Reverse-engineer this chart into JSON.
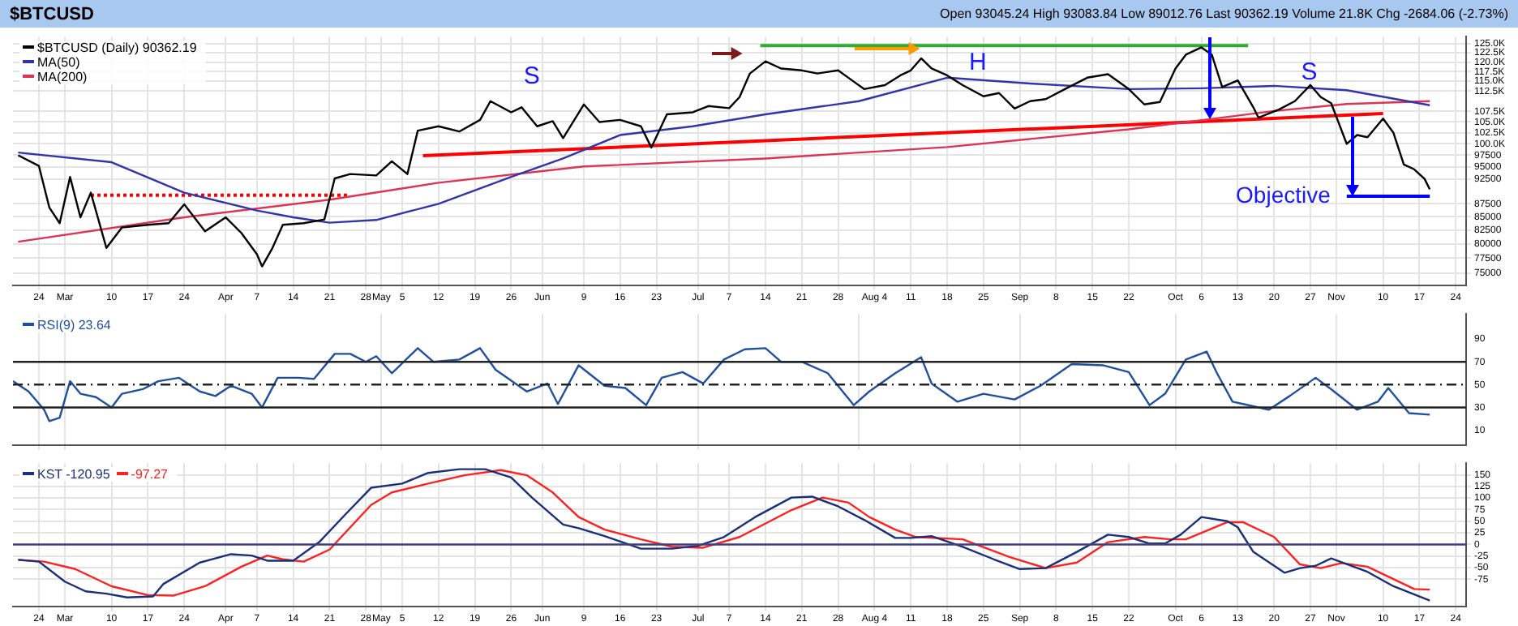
{
  "chart_data": [
    {
      "type": "line",
      "title": "$BTCUSD",
      "subtitle": "Open 93045.24 High 93083.84 Low 89012.76 Last 90362.19 Volume 21.8K Chg -2684.06 (-2.73%)",
      "log": "y",
      "grid": true,
      "legend": "top left",
      "marker": "none",
      "xlim": [
        "--02-19",
        "--11-26"
      ],
      "xticks": [
        {
          "value": "--02-24",
          "label": "24"
        },
        {
          "value": "--03-01",
          "label": "Mar"
        },
        {
          "value": "--03-10",
          "label": "10"
        },
        {
          "value": "--03-17",
          "label": "17"
        },
        {
          "value": "--03-24",
          "label": "24"
        },
        {
          "value": "--04-01",
          "label": "Apr"
        },
        {
          "value": "--04-07",
          "label": "7"
        },
        {
          "value": "--04-14",
          "label": "14"
        },
        {
          "value": "--04-21",
          "label": "21"
        },
        {
          "value": "--04-28",
          "label": "28"
        },
        {
          "value": "--05-01",
          "label": "May"
        },
        {
          "value": "--05-05",
          "label": "5"
        },
        {
          "value": "--05-12",
          "label": "12"
        },
        {
          "value": "--05-19",
          "label": "19"
        },
        {
          "value": "--05-26",
          "label": "26"
        },
        {
          "value": "--06-01",
          "label": "Jun"
        },
        {
          "value": "--06-09",
          "label": "9"
        },
        {
          "value": "--06-16",
          "label": "16"
        },
        {
          "value": "--06-23",
          "label": "23"
        },
        {
          "value": "--07-01",
          "label": "Jul"
        },
        {
          "value": "--07-07",
          "label": "7"
        },
        {
          "value": "--07-14",
          "label": "14"
        },
        {
          "value": "--07-21",
          "label": "21"
        },
        {
          "value": "--07-28",
          "label": "28"
        },
        {
          "value": "--08-04",
          "label": "Aug 4"
        },
        {
          "value": "--08-11",
          "label": "11"
        },
        {
          "value": "--08-18",
          "label": "18"
        },
        {
          "value": "--08-25",
          "label": "25"
        },
        {
          "value": "--09-01",
          "label": "Sep"
        },
        {
          "value": "--09-08",
          "label": "8"
        },
        {
          "value": "--09-15",
          "label": "15"
        },
        {
          "value": "--09-22",
          "label": "22"
        },
        {
          "value": "--10-01",
          "label": "Oct"
        },
        {
          "value": "--10-06",
          "label": "6"
        },
        {
          "value": "--10-13",
          "label": "13"
        },
        {
          "value": "--10-20",
          "label": "20"
        },
        {
          "value": "--10-27",
          "label": "27"
        },
        {
          "value": "--11-01",
          "label": "Nov"
        },
        {
          "value": "--11-10",
          "label": "10"
        },
        {
          "value": "--11-17",
          "label": "17"
        },
        {
          "value": "--11-24",
          "label": "24"
        }
      ],
      "ylim": [
        73000,
        127000
      ],
      "yticks": [
        {
          "value": 125000,
          "label": "125.0K"
        },
        {
          "value": 122500,
          "label": "122.5K"
        },
        {
          "value": 120000,
          "label": "120.0K"
        },
        {
          "value": 117500,
          "label": "117.5K"
        },
        {
          "value": 115000,
          "label": "115.0K"
        },
        {
          "value": 112500,
          "label": "112.5K"
        },
        {
          "value": 107500,
          "label": "107.5K"
        },
        {
          "value": 105000,
          "label": "105.0K"
        },
        {
          "value": 102500,
          "label": "102.5K"
        },
        {
          "value": 100000,
          "label": "100.0K"
        },
        97500,
        95000,
        92500,
        87500,
        85000,
        82500,
        80000,
        77500,
        75000
      ],
      "series": [
        {
          "name": "$BTCUSD (Daily) 90362.19",
          "color": "#000000",
          "x": [
            "--02-20",
            "--02-24",
            "--02-26",
            "--02-28",
            "--03-02",
            "--03-04",
            "--03-06",
            "--03-09",
            "--03-12",
            "--03-17",
            "--03-21",
            "--03-24",
            "--03-28",
            "--04-01",
            "--04-04",
            "--04-07",
            "--04-08",
            "--04-10",
            "--04-12",
            "--04-16",
            "--04-20",
            "--04-22",
            "--04-25",
            "--04-30",
            "--05-03",
            "--05-06",
            "--05-08",
            "--05-12",
            "--05-16",
            "--05-20",
            "--05-22",
            "--05-26",
            "--05-28",
            "--05-31",
            "--06-03",
            "--06-05",
            "--06-09",
            "--06-12",
            "--06-16",
            "--06-20",
            "--06-22",
            "--06-25",
            "--06-30",
            "--07-03",
            "--07-07",
            "--07-09",
            "--07-11",
            "--07-14",
            "--07-17",
            "--07-21",
            "--07-24",
            "--07-28",
            "--07-31",
            "--08-02",
            "--08-06",
            "--08-09",
            "--08-11",
            "--08-13",
            "--08-15",
            "--08-18",
            "--08-21",
            "--08-25",
            "--08-28",
            "--08-31",
            "--09-03",
            "--09-06",
            "--09-10",
            "--09-14",
            "--09-18",
            "--09-22",
            "--09-25",
            "--09-28",
            "--10-01",
            "--10-03",
            "--10-06",
            "--10-08",
            "--10-10",
            "--10-13",
            "--10-16",
            "--10-17",
            "--10-21",
            "--10-24",
            "--10-27",
            "--10-29",
            "--10-31",
            "--11-03",
            "--11-05",
            "--11-07",
            "--11-10",
            "--11-12",
            "--11-14",
            "--11-16",
            "--11-18",
            "--11-19"
          ],
          "values": [
            97500,
            95200,
            86800,
            83800,
            92900,
            84900,
            89700,
            79300,
            83000,
            83500,
            83800,
            87400,
            82300,
            84900,
            82000,
            78200,
            76100,
            79300,
            83500,
            83800,
            84500,
            92600,
            93500,
            93200,
            96200,
            93500,
            103000,
            104000,
            102800,
            105500,
            110000,
            107300,
            108500,
            104000,
            105200,
            101300,
            109200,
            105000,
            105500,
            104000,
            99200,
            106800,
            107300,
            108800,
            108300,
            111000,
            117000,
            120200,
            118300,
            117800,
            117000,
            117800,
            114900,
            113000,
            114000,
            116500,
            117800,
            121000,
            118300,
            116500,
            114000,
            111200,
            112000,
            108200,
            110000,
            110500,
            113200,
            115900,
            116800,
            113000,
            109200,
            109800,
            118300,
            122000,
            124000,
            122000,
            113500,
            115200,
            108500,
            106000,
            108000,
            110000,
            114000,
            111000,
            109500,
            100000,
            102000,
            101500,
            105800,
            102500,
            95500,
            94500,
            92500,
            90362.19
          ]
        },
        {
          "name": "MA(50)",
          "color": "#3333aa",
          "x": [
            "--02-20",
            "--03-10",
            "--03-24",
            "--04-07",
            "--04-14",
            "--04-21",
            "--04-30",
            "--05-12",
            "--05-26",
            "--06-05",
            "--06-16",
            "--06-30",
            "--07-14",
            "--08-01",
            "--08-18",
            "--09-03",
            "--09-22",
            "--10-06",
            "--10-20",
            "--11-03",
            "--11-19"
          ],
          "values": [
            98100,
            96000,
            89700,
            86200,
            84900,
            83900,
            84400,
            87500,
            92900,
            96800,
            102000,
            104000,
            106800,
            110000,
            115900,
            114400,
            113000,
            113200,
            113800,
            112700,
            109000
          ]
        },
        {
          "name": "MA(200)",
          "color": "#dd3355",
          "x": [
            "--02-20",
            "--03-24",
            "--04-21",
            "--05-12",
            "--06-09",
            "--07-14",
            "--08-18",
            "--09-22",
            "--10-20",
            "--11-03",
            "--11-19"
          ],
          "values": [
            80400,
            84900,
            88300,
            91700,
            95100,
            96800,
            99300,
            103300,
            107600,
            109300,
            110000
          ]
        },
        {
          "color": "#ff0000",
          "x": [
            "--05-09",
            "--11-10"
          ],
          "values": [
            97400,
            107000
          ]
        },
        {
          "color": "#ff0000",
          "line_style": "dotted",
          "x": [
            "--03-06",
            "--04-25"
          ],
          "values": [
            89200,
            89200
          ]
        },
        {
          "color": "#33aa33",
          "x": [
            "--07-13",
            "--10-15"
          ],
          "values": [
            124500,
            124500
          ]
        },
        {
          "color": "#0000ff",
          "x": [
            "--11-03",
            "--11-19"
          ],
          "values": [
            89000,
            89000
          ]
        }
      ],
      "annotations": [
        "S",
        "H",
        "S",
        {
          "text": "Objective",
          "x": "--11-03",
          "y": 89000
        }
      ]
    },
    {
      "type": "line",
      "grid": "x",
      "legend": "top left",
      "marker": "none",
      "tick_labels": "y",
      "xlim": [
        "--02-19",
        "--11-26"
      ],
      "xticks": [
        {
          "value": "--02-24",
          "label": null
        },
        {
          "value": "--03-01",
          "label": null
        },
        {
          "value": "--04-01",
          "label": null
        },
        {
          "value": "--05-01",
          "label": null
        },
        {
          "value": "--06-01",
          "label": null
        },
        {
          "value": "--07-01",
          "label": null
        },
        {
          "value": "--08-01",
          "label": null
        },
        {
          "value": "--09-01",
          "label": null
        },
        {
          "value": "--10-01",
          "label": null
        },
        {
          "value": "--11-01",
          "label": null
        }
      ],
      "ylim": [
        -3,
        112
      ],
      "yticks": [
        10,
        30,
        50,
        70,
        90
      ],
      "ref_lines": [
        {
          "axis": "y",
          "value": 70,
          "color": "#222222"
        },
        {
          "axis": "y",
          "value": 50,
          "color": "#222222",
          "line_style": "dashed"
        },
        {
          "axis": "y",
          "value": 30,
          "color": "#222222"
        }
      ],
      "series": [
        {
          "name": "RSI(9) 23.64",
          "color": "#1f4f9f",
          "x": [
            "--02-19",
            "--02-22",
            "--02-25",
            "--02-26",
            "--02-28",
            "--03-02",
            "--03-04",
            "--03-07",
            "--03-10",
            "--03-12",
            "--03-16",
            "--03-19",
            "--03-23",
            "--03-27",
            "--03-30",
            "--04-02",
            "--04-06",
            "--04-08",
            "--04-11",
            "--04-15",
            "--04-18",
            "--04-22",
            "--04-25",
            "--04-28",
            "--04-30",
            "--05-03",
            "--05-08",
            "--05-11",
            "--05-16",
            "--05-20",
            "--05-23",
            "--05-29",
            "--06-02",
            "--06-04",
            "--06-08",
            "--06-13",
            "--06-17",
            "--06-21",
            "--06-24",
            "--06-28",
            "--07-02",
            "--07-06",
            "--07-10",
            "--07-14",
            "--07-17",
            "--07-21",
            "--07-26",
            "--07-31",
            "--08-03",
            "--08-08",
            "--08-13",
            "--08-15",
            "--08-20",
            "--08-25",
            "--08-31",
            "--09-05",
            "--09-11",
            "--09-17",
            "--09-22",
            "--09-26",
            "--09-29",
            "--10-03",
            "--10-07",
            "--10-09",
            "--10-12",
            "--10-19",
            "--10-23",
            "--10-28",
            "--10-31",
            "--11-05",
            "--11-09",
            "--11-11",
            "--11-15",
            "--11-19"
          ],
          "values": [
            53,
            44,
            28,
            18,
            21,
            53,
            42,
            39,
            30,
            42,
            46,
            53,
            56,
            44,
            40,
            49,
            42,
            30,
            56,
            56,
            55,
            77,
            77,
            70,
            75,
            60,
            82,
            70,
            72,
            82,
            63,
            44,
            51,
            33,
            67,
            49,
            47,
            32,
            56,
            61,
            51,
            72,
            81,
            82,
            70,
            70,
            60,
            32,
            44,
            60,
            74,
            51,
            35,
            42,
            37,
            49,
            68,
            67,
            61,
            32,
            42,
            72,
            79,
            60,
            35,
            28,
            40,
            56,
            46,
            28,
            35,
            47,
            25,
            23.64
          ]
        }
      ]
    },
    {
      "type": "line",
      "grid": true,
      "legend": "top left",
      "marker": "none",
      "xlim": [
        "--02-19",
        "--11-26"
      ],
      "xticks": [
        {
          "value": "--02-24",
          "label": "24"
        },
        {
          "value": "--03-01",
          "label": "Mar"
        },
        {
          "value": "--03-10",
          "label": "10"
        },
        {
          "value": "--03-17",
          "label": "17"
        },
        {
          "value": "--03-24",
          "label": "24"
        },
        {
          "value": "--04-01",
          "label": "Apr"
        },
        {
          "value": "--04-07",
          "label": "7"
        },
        {
          "value": "--04-14",
          "label": "14"
        },
        {
          "value": "--04-21",
          "label": "21"
        },
        {
          "value": "--04-28",
          "label": "28"
        },
        {
          "value": "--05-01",
          "label": "May"
        },
        {
          "value": "--05-05",
          "label": "5"
        },
        {
          "value": "--05-12",
          "label": "12"
        },
        {
          "value": "--05-19",
          "label": "19"
        },
        {
          "value": "--05-26",
          "label": "26"
        },
        {
          "value": "--06-01",
          "label": "Jun"
        },
        {
          "value": "--06-09",
          "label": "9"
        },
        {
          "value": "--06-16",
          "label": "16"
        },
        {
          "value": "--06-23",
          "label": "23"
        },
        {
          "value": "--07-01",
          "label": "Jul"
        },
        {
          "value": "--07-07",
          "label": "7"
        },
        {
          "value": "--07-14",
          "label": "14"
        },
        {
          "value": "--07-21",
          "label": "21"
        },
        {
          "value": "--07-28",
          "label": "28"
        },
        {
          "value": "--08-04",
          "label": "Aug 4"
        },
        {
          "value": "--08-11",
          "label": "11"
        },
        {
          "value": "--08-18",
          "label": "18"
        },
        {
          "value": "--08-25",
          "label": "25"
        },
        {
          "value": "--09-01",
          "label": "Sep"
        },
        {
          "value": "--09-08",
          "label": "8"
        },
        {
          "value": "--09-15",
          "label": "15"
        },
        {
          "value": "--09-22",
          "label": "22"
        },
        {
          "value": "--10-01",
          "label": "Oct"
        },
        {
          "value": "--10-06",
          "label": "6"
        },
        {
          "value": "--10-13",
          "label": "13"
        },
        {
          "value": "--10-20",
          "label": "20"
        },
        {
          "value": "--10-27",
          "label": "27"
        },
        {
          "value": "--11-01",
          "label": "Nov"
        },
        {
          "value": "--11-10",
          "label": "10"
        },
        {
          "value": "--11-17",
          "label": "17"
        },
        {
          "value": "--11-24",
          "label": "24"
        }
      ],
      "ylim": [
        -133,
        175
      ],
      "yticks": [
        150,
        125,
        100,
        75,
        50,
        25,
        0,
        -25,
        -50,
        -75
      ],
      "ref_lines": [
        {
          "axis": "y",
          "value": 0,
          "color": "#404080"
        }
      ],
      "series": [
        {
          "name": "KST -120.95",
          "color": "#1a2f7a",
          "x": [
            "--02-20",
            "--02-24",
            "--03-01",
            "--03-05",
            "--03-09",
            "--03-13",
            "--03-18",
            "--03-20",
            "--03-27",
            "--04-02",
            "--04-06",
            "--04-09",
            "--04-14",
            "--04-19",
            "--04-24",
            "--04-29",
            "--05-05",
            "--05-10",
            "--05-16",
            "--05-21",
            "--05-26",
            "--05-30",
            "--06-05",
            "--06-08",
            "--06-13",
            "--06-20",
            "--06-26",
            "--07-01",
            "--07-06",
            "--07-12",
            "--07-19",
            "--07-23",
            "--07-28",
            "--08-02",
            "--08-08",
            "--08-11",
            "--08-15",
            "--08-21",
            "--08-27",
            "--09-01",
            "--09-06",
            "--09-12",
            "--09-18",
            "--09-22",
            "--09-26",
            "--09-29",
            "--10-02",
            "--10-06",
            "--10-11",
            "--10-13",
            "--10-16",
            "--10-22",
            "--10-25",
            "--10-28",
            "--10-31",
            "--11-07",
            "--11-12",
            "--11-19"
          ],
          "values": [
            -33,
            -37,
            -80,
            -101,
            -106,
            -114,
            -112,
            -85,
            -39,
            -21,
            -24,
            -35,
            -35,
            5,
            64,
            122,
            131,
            154,
            162,
            162,
            144,
            101,
            43,
            35,
            18,
            -9,
            -9,
            -3,
            16,
            59,
            101,
            103,
            82,
            53,
            14,
            14,
            18,
            -5,
            -32,
            -53,
            -51,
            -16,
            21,
            16,
            2,
            2,
            21,
            59,
            50,
            37,
            -16,
            -61,
            -51,
            -46,
            -30,
            -59,
            -90,
            -120.95
          ]
        },
        {
          "name": "-97.27",
          "color": "#ff2020",
          "x": [
            "--02-20",
            "--02-25",
            "--03-03",
            "--03-10",
            "--03-17",
            "--03-22",
            "--03-28",
            "--04-04",
            "--04-09",
            "--04-12",
            "--04-16",
            "--04-21",
            "--04-29",
            "--05-03",
            "--05-10",
            "--05-17",
            "--05-24",
            "--05-29",
            "--06-03",
            "--06-08",
            "--06-13",
            "--06-20",
            "--06-26",
            "--07-02",
            "--07-09",
            "--07-19",
            "--07-25",
            "--07-30",
            "--08-03",
            "--08-08",
            "--08-12",
            "--08-21",
            "--08-30",
            "--09-06",
            "--09-12",
            "--09-18",
            "--09-25",
            "--09-30",
            "--10-03",
            "--10-11",
            "--10-14",
            "--10-20",
            "--10-25",
            "--10-29",
            "--11-02",
            "--11-07",
            "--11-16",
            "--11-19"
          ],
          "values": [
            -33,
            -37,
            -53,
            -90,
            -109,
            -110,
            -90,
            -48,
            -24,
            -32,
            -37,
            -11,
            85,
            112,
            131,
            149,
            160,
            149,
            112,
            59,
            32,
            11,
            -5,
            -7,
            16,
            74,
            101,
            90,
            59,
            32,
            16,
            11,
            -27,
            -51,
            -39,
            5,
            16,
            11,
            11,
            48,
            48,
            16,
            -43,
            -51,
            -40,
            -48,
            -96,
            -97.27
          ]
        }
      ]
    }
  ]
}
